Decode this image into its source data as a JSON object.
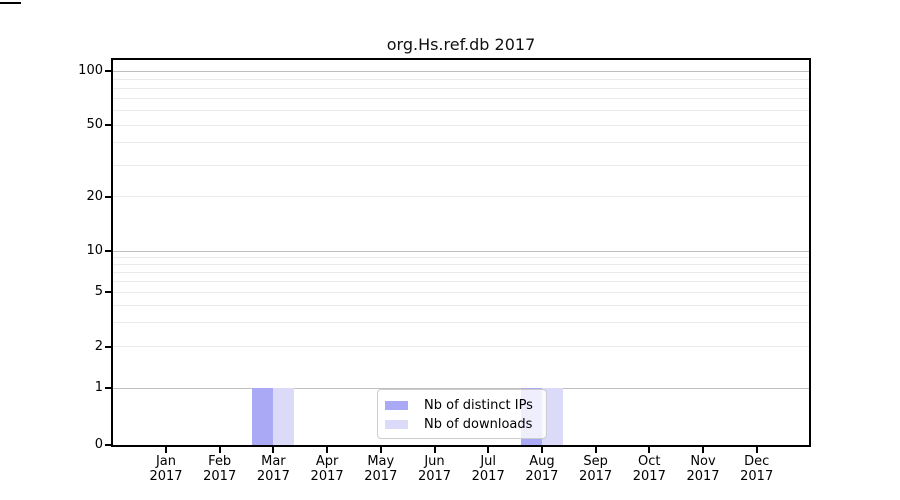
{
  "chart_data": {
    "type": "bar",
    "title": "org.Hs.ref.db 2017",
    "categories": [
      "Jan",
      "Feb",
      "Mar",
      "Apr",
      "May",
      "Jun",
      "Jul",
      "Aug",
      "Sep",
      "Oct",
      "Nov",
      "Dec"
    ],
    "category_year": "2017",
    "series": [
      {
        "name": "Nb of distinct IPs",
        "color": "#a9a9f6",
        "values": [
          0,
          0,
          1,
          0,
          0,
          0,
          0,
          1,
          0,
          0,
          0,
          0
        ]
      },
      {
        "name": "Nb of downloads",
        "color": "#dbdbf9",
        "values": [
          0,
          0,
          1,
          0,
          0,
          0,
          0,
          1,
          0,
          0,
          0,
          0
        ]
      }
    ],
    "xlabel": "",
    "ylabel": "",
    "yaxis": {
      "scale": "symlog",
      "ticks": [
        100,
        50,
        20,
        10,
        5,
        2,
        1,
        0
      ],
      "major_gridlines": [
        100,
        10,
        1
      ],
      "minor_gridlines": [
        90,
        80,
        70,
        60,
        50,
        40,
        30,
        20,
        9,
        8,
        7,
        6,
        5,
        4,
        3,
        2
      ],
      "top_value": 115
    },
    "grid": "horizontal",
    "legend": {
      "position": "lower center",
      "entries": [
        "Nb of distinct IPs",
        "Nb of downloads"
      ]
    }
  },
  "colors": {
    "major_grid": "#bfbfbf",
    "minor_grid": "#ebebeb",
    "spine": "#000000",
    "legend_border": "#cccccc",
    "bar_distinct_ips": "#a9a9f6",
    "bar_downloads": "#dbdbf9"
  }
}
